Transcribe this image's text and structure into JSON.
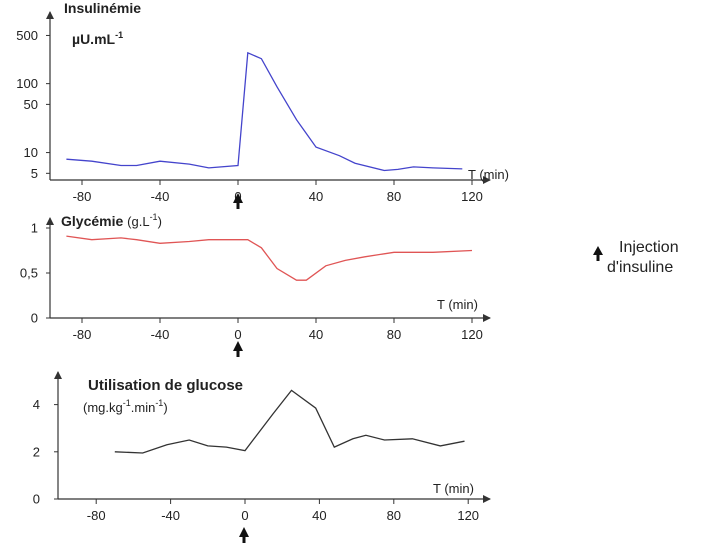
{
  "chart_data": [
    {
      "type": "line",
      "title": "Insulinémie",
      "unit_label": "µU.mL",
      "unit_sup": "-1",
      "xlabel": "T",
      "xunit": "(min)",
      "y_scale": "log",
      "xlim": [
        -90,
        120
      ],
      "ylim": [
        4,
        600
      ],
      "x_ticks": [
        "-80",
        "-40",
        "0",
        "40",
        "80",
        "120"
      ],
      "y_ticks": [
        "500",
        "100",
        "50",
        "10",
        "5"
      ],
      "color": "#4444cc",
      "series": [
        {
          "x": [
            -88,
            -75,
            -60,
            -52,
            -40,
            -25,
            -15,
            0,
            5,
            12,
            20,
            30,
            40,
            52,
            60,
            75,
            82,
            90,
            100,
            115
          ],
          "y": [
            8,
            7.5,
            6.5,
            6.5,
            7.5,
            6.8,
            6,
            6.5,
            280,
            230,
            90,
            30,
            12,
            9,
            7,
            5.5,
            5.7,
            6.2,
            6,
            5.8
          ]
        }
      ]
    },
    {
      "type": "line",
      "title": "Glycémie",
      "unit_label": "(g.L",
      "unit_sup": "-1",
      "unit_close": ")",
      "xlabel": "T",
      "xunit": "(min)",
      "xlim": [
        -90,
        120
      ],
      "ylim": [
        0,
        1.1
      ],
      "x_ticks": [
        "-80",
        "-40",
        "0",
        "40",
        "80",
        "120"
      ],
      "y_ticks": [
        "1",
        "0,5",
        "0"
      ],
      "color": "#e05555",
      "series": [
        {
          "x": [
            -88,
            -75,
            -60,
            -52,
            -40,
            -25,
            -15,
            0,
            5,
            12,
            20,
            30,
            35,
            45,
            55,
            65,
            80,
            100,
            120
          ],
          "y": [
            0.91,
            0.87,
            0.89,
            0.87,
            0.83,
            0.85,
            0.87,
            0.87,
            0.87,
            0.78,
            0.55,
            0.42,
            0.42,
            0.58,
            0.64,
            0.68,
            0.73,
            0.73,
            0.75
          ]
        }
      ]
    },
    {
      "type": "line",
      "title": "Utilisation de glucose",
      "unit_label": "(mg.kg",
      "unit_sup1": "-1",
      "unit_mid": ".min",
      "unit_sup2": "-1",
      "unit_close": ")",
      "xlabel": "T",
      "xunit": "(min)",
      "xlim": [
        -95,
        125
      ],
      "ylim": [
        0,
        5
      ],
      "x_ticks": [
        "-80",
        "-40",
        "0",
        "40",
        "80",
        "120"
      ],
      "y_ticks": [
        "4",
        "2",
        "0"
      ],
      "color": "#333333",
      "series": [
        {
          "x": [
            -70,
            -55,
            -42,
            -30,
            -20,
            -10,
            0,
            15,
            25,
            38,
            48,
            58,
            65,
            75,
            90,
            105,
            118
          ],
          "y": [
            2.0,
            1.95,
            2.3,
            2.5,
            2.25,
            2.2,
            2.05,
            3.6,
            4.6,
            3.85,
            2.2,
            2.55,
            2.7,
            2.5,
            2.55,
            2.25,
            2.45
          ]
        }
      ]
    }
  ],
  "legend": {
    "text_line1": "Injection",
    "text_line2": "d'insuline"
  }
}
